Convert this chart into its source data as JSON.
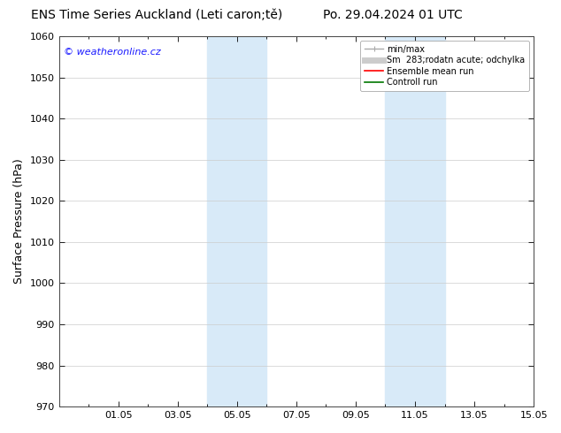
{
  "title_left": "ENS Time Series Auckland (Leti caron;tě)",
  "title_right": "Po. 29.04.2024 01 UTC",
  "ylabel": "Surface Pressure (hPa)",
  "ylim": [
    970,
    1060
  ],
  "yticks": [
    970,
    980,
    990,
    1000,
    1010,
    1020,
    1030,
    1040,
    1050,
    1060
  ],
  "xlim": [
    0,
    16
  ],
  "xtick_labels": [
    "01.05",
    "03.05",
    "05.05",
    "07.05",
    "09.05",
    "11.05",
    "13.05",
    "15.05"
  ],
  "xtick_positions": [
    2,
    4,
    6,
    8,
    10,
    12,
    14,
    16
  ],
  "watermark": "© weatheronline.cz",
  "watermark_color": "#1a1aff",
  "bg_color": "#ffffff",
  "plot_bg_color": "#ffffff",
  "shaded_bands": [
    {
      "x_start": 5,
      "x_end": 7,
      "color": "#d8eaf8"
    },
    {
      "x_start": 11,
      "x_end": 13,
      "color": "#d8eaf8"
    }
  ],
  "legend_items": [
    {
      "label": "min/max",
      "color": "#aaaaaa",
      "lw": 1.0
    },
    {
      "label": "Sm  283;rodatn acute; odchylka",
      "color": "#cccccc",
      "lw": 5
    },
    {
      "label": "Ensemble mean run",
      "color": "#ff0000",
      "lw": 1.2
    },
    {
      "label": "Controll run",
      "color": "#007700",
      "lw": 1.2
    }
  ],
  "title_fontsize": 10,
  "axis_label_fontsize": 9,
  "tick_fontsize": 8,
  "legend_fontsize": 7
}
